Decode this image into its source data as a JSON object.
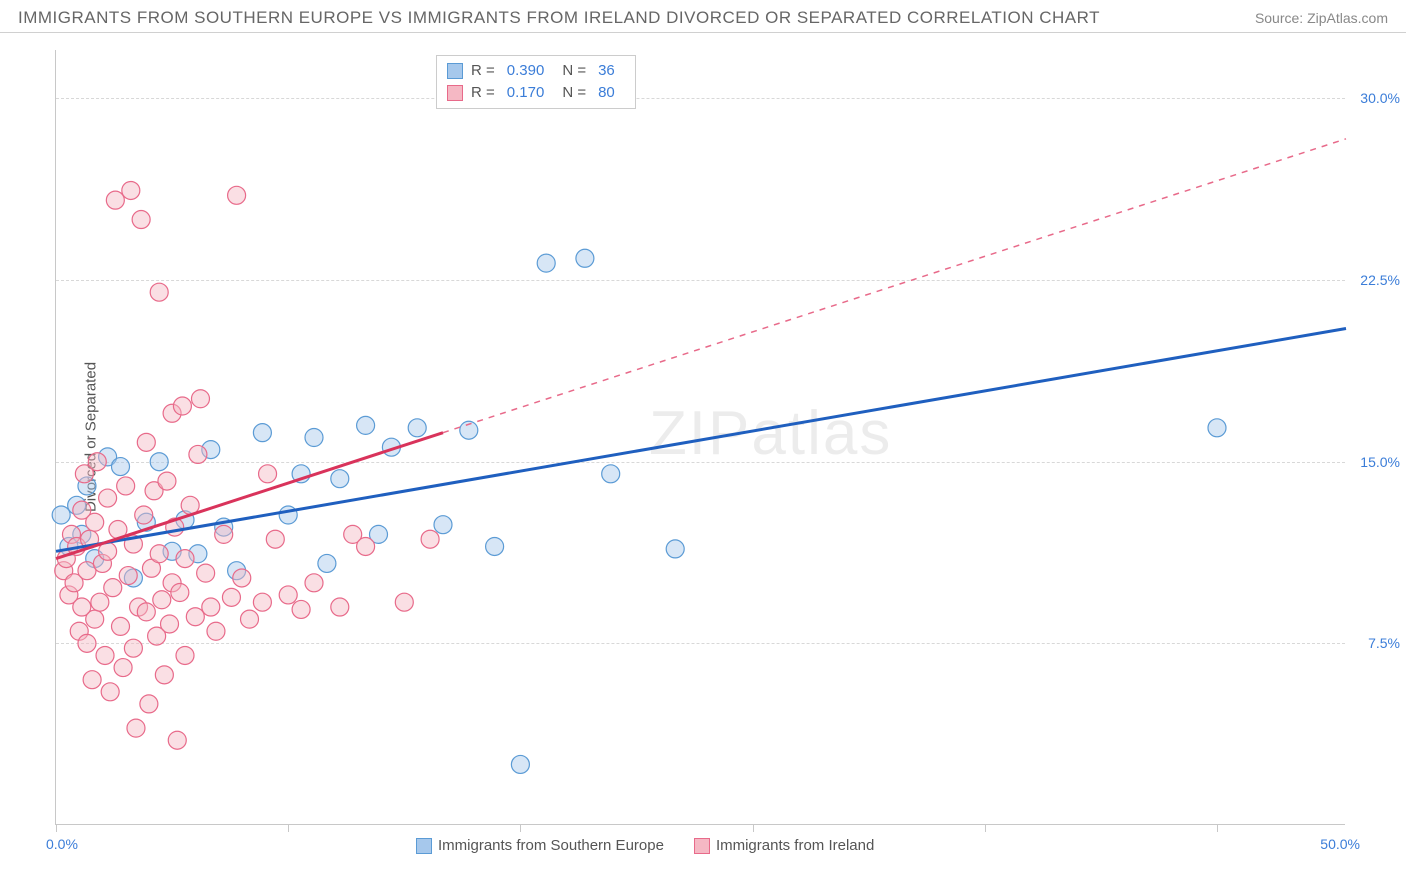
{
  "title": "IMMIGRANTS FROM SOUTHERN EUROPE VS IMMIGRANTS FROM IRELAND DIVORCED OR SEPARATED CORRELATION CHART",
  "source": "Source: ZipAtlas.com",
  "watermark": "ZIPatlas",
  "y_axis_title": "Divorced or Separated",
  "chart": {
    "type": "scatter",
    "background_color": "#ffffff",
    "grid_color": "#d8d8d8",
    "border_color": "#c8c8c8",
    "xlim": [
      0,
      50
    ],
    "ylim": [
      0,
      32
    ],
    "x_tick_positions": [
      0,
      9,
      18,
      27,
      36,
      45
    ],
    "x_labels_shown": {
      "0": "0.0%",
      "50": "50.0%"
    },
    "y_ticks": [
      7.5,
      15.0,
      22.5,
      30.0
    ],
    "y_tick_labels": [
      "7.5%",
      "15.0%",
      "22.5%",
      "30.0%"
    ],
    "marker_radius": 9,
    "marker_opacity": 0.45,
    "series": [
      {
        "name": "Immigrants from Southern Europe",
        "color_fill": "#a6c8ec",
        "color_stroke": "#5b9bd5",
        "trend_color": "#1f5fbf",
        "trend_width": 3,
        "trend_style": "solid",
        "trend_extrapolate_dash": "6,6",
        "R": "0.390",
        "N": "36",
        "trend_line": {
          "x1": 0,
          "y1": 11.3,
          "x2": 50,
          "y2": 20.5
        },
        "points": [
          [
            0.2,
            12.8
          ],
          [
            0.5,
            11.5
          ],
          [
            0.8,
            13.2
          ],
          [
            1.0,
            12.0
          ],
          [
            1.2,
            14.0
          ],
          [
            1.5,
            11.0
          ],
          [
            2.0,
            15.2
          ],
          [
            2.5,
            14.8
          ],
          [
            3.0,
            10.2
          ],
          [
            3.5,
            12.5
          ],
          [
            4.0,
            15.0
          ],
          [
            4.5,
            11.3
          ],
          [
            5.0,
            12.6
          ],
          [
            5.5,
            11.2
          ],
          [
            6.0,
            15.5
          ],
          [
            6.5,
            12.3
          ],
          [
            7.0,
            10.5
          ],
          [
            8.0,
            16.2
          ],
          [
            9.0,
            12.8
          ],
          [
            9.5,
            14.5
          ],
          [
            10.0,
            16.0
          ],
          [
            10.5,
            10.8
          ],
          [
            11.0,
            14.3
          ],
          [
            12.0,
            16.5
          ],
          [
            12.5,
            12.0
          ],
          [
            13.0,
            15.6
          ],
          [
            14.0,
            16.4
          ],
          [
            15.0,
            12.4
          ],
          [
            16.0,
            16.3
          ],
          [
            17.0,
            11.5
          ],
          [
            18.0,
            2.5
          ],
          [
            19.0,
            23.2
          ],
          [
            20.5,
            23.4
          ],
          [
            21.5,
            14.5
          ],
          [
            24.0,
            11.4
          ],
          [
            45.0,
            16.4
          ]
        ]
      },
      {
        "name": "Immigrants from Ireland",
        "color_fill": "#f5b8c4",
        "color_stroke": "#e86a8a",
        "trend_color": "#d9335b",
        "trend_width": 3,
        "trend_style": "solid",
        "R": "0.170",
        "N": "80",
        "trend_line": {
          "x1": 0,
          "y1": 11.0,
          "x2": 15,
          "y2": 16.2
        },
        "points": [
          [
            0.3,
            10.5
          ],
          [
            0.4,
            11.0
          ],
          [
            0.5,
            9.5
          ],
          [
            0.6,
            12.0
          ],
          [
            0.7,
            10.0
          ],
          [
            0.8,
            11.5
          ],
          [
            0.9,
            8.0
          ],
          [
            1.0,
            13.0
          ],
          [
            1.0,
            9.0
          ],
          [
            1.1,
            14.5
          ],
          [
            1.2,
            7.5
          ],
          [
            1.2,
            10.5
          ],
          [
            1.3,
            11.8
          ],
          [
            1.4,
            6.0
          ],
          [
            1.5,
            12.5
          ],
          [
            1.5,
            8.5
          ],
          [
            1.6,
            15.0
          ],
          [
            1.7,
            9.2
          ],
          [
            1.8,
            10.8
          ],
          [
            1.9,
            7.0
          ],
          [
            2.0,
            11.3
          ],
          [
            2.0,
            13.5
          ],
          [
            2.1,
            5.5
          ],
          [
            2.2,
            9.8
          ],
          [
            2.3,
            25.8
          ],
          [
            2.4,
            12.2
          ],
          [
            2.5,
            8.2
          ],
          [
            2.6,
            6.5
          ],
          [
            2.7,
            14.0
          ],
          [
            2.8,
            10.3
          ],
          [
            2.9,
            26.2
          ],
          [
            3.0,
            11.6
          ],
          [
            3.0,
            7.3
          ],
          [
            3.1,
            4.0
          ],
          [
            3.2,
            9.0
          ],
          [
            3.3,
            25.0
          ],
          [
            3.4,
            12.8
          ],
          [
            3.5,
            8.8
          ],
          [
            3.5,
            15.8
          ],
          [
            3.6,
            5.0
          ],
          [
            3.7,
            10.6
          ],
          [
            3.8,
            13.8
          ],
          [
            3.9,
            7.8
          ],
          [
            4.0,
            22.0
          ],
          [
            4.0,
            11.2
          ],
          [
            4.1,
            9.3
          ],
          [
            4.2,
            6.2
          ],
          [
            4.3,
            14.2
          ],
          [
            4.4,
            8.3
          ],
          [
            4.5,
            17.0
          ],
          [
            4.5,
            10.0
          ],
          [
            4.6,
            12.3
          ],
          [
            4.7,
            3.5
          ],
          [
            4.8,
            9.6
          ],
          [
            4.9,
            17.3
          ],
          [
            5.0,
            11.0
          ],
          [
            5.0,
            7.0
          ],
          [
            5.2,
            13.2
          ],
          [
            5.4,
            8.6
          ],
          [
            5.5,
            15.3
          ],
          [
            5.6,
            17.6
          ],
          [
            5.8,
            10.4
          ],
          [
            6.0,
            9.0
          ],
          [
            6.2,
            8.0
          ],
          [
            6.5,
            12.0
          ],
          [
            6.8,
            9.4
          ],
          [
            7.0,
            26.0
          ],
          [
            7.2,
            10.2
          ],
          [
            7.5,
            8.5
          ],
          [
            8.0,
            9.2
          ],
          [
            8.2,
            14.5
          ],
          [
            8.5,
            11.8
          ],
          [
            9.0,
            9.5
          ],
          [
            9.5,
            8.9
          ],
          [
            10.0,
            10.0
          ],
          [
            11.0,
            9.0
          ],
          [
            11.5,
            12.0
          ],
          [
            12.0,
            11.5
          ],
          [
            13.5,
            9.2
          ],
          [
            14.5,
            11.8
          ]
        ]
      }
    ]
  },
  "legend_top": {
    "rows": [
      {
        "swatch_fill": "#a6c8ec",
        "swatch_stroke": "#5b9bd5",
        "r_label": "R =",
        "r_val": "0.390",
        "n_label": "N =",
        "n_val": "36"
      },
      {
        "swatch_fill": "#f5b8c4",
        "swatch_stroke": "#e86a8a",
        "r_label": "R =",
        "r_val": "0.170",
        "n_label": "N =",
        "n_val": "80"
      }
    ]
  },
  "legend_bottom": {
    "items": [
      {
        "swatch_fill": "#a6c8ec",
        "swatch_stroke": "#5b9bd5",
        "label": "Immigrants from Southern Europe"
      },
      {
        "swatch_fill": "#f5b8c4",
        "swatch_stroke": "#e86a8a",
        "label": "Immigrants from Ireland"
      }
    ]
  }
}
